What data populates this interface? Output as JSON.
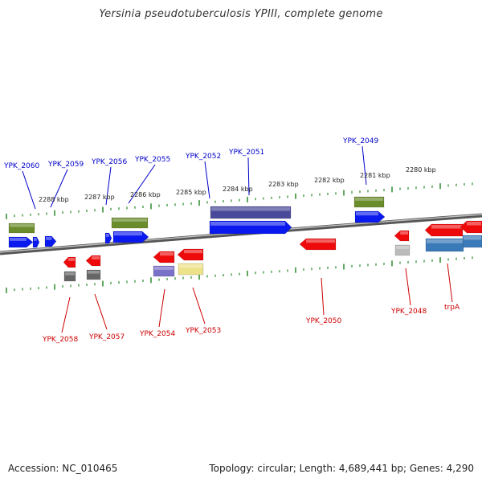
{
  "title": "Yersinia pseudotuberculosis YPIII, complete genome",
  "footer": {
    "accession": "Accession: NC_010465",
    "summary": "Topology: circular; Length: 4,689,441 bp; Genes: 4,290"
  },
  "colors": {
    "backbone": "#888888",
    "tick": "#2a8a2a",
    "forward_label": "#0000cc",
    "reverse_label": "#cc0000",
    "cds_forward": "#0a1aee",
    "cds_reverse": "#ee0a0a",
    "gene_green": "#6b8c2a",
    "gene_purple": "#4a4a9a",
    "gene_grey": "#666666",
    "gene_lightgrey": "#bbbbbb",
    "gene_lavender": "#7a72c8",
    "gene_khaki": "#ece28a",
    "gene_steelblue": "#3a7ab8",
    "kbp_label": "#222222"
  },
  "kbp_labels": [
    "2288 kbp",
    "2287 kbp",
    "2286 kbp",
    "2285 kbp",
    "2284 kbp",
    "2283 kbp",
    "2282 kbp",
    "2281 kbp",
    "2280 kbp"
  ],
  "forward_genes": [
    "YPK_2060",
    "YPK_2059",
    "YPK_2056",
    "YPK_2055",
    "YPK_2052",
    "YPK_2051",
    "YPK_2049"
  ],
  "reverse_genes": [
    "YPK_2058",
    "YPK_2057",
    "YPK_2054",
    "YPK_2053",
    "YPK_2050",
    "YPK_2048",
    "trpA"
  ]
}
